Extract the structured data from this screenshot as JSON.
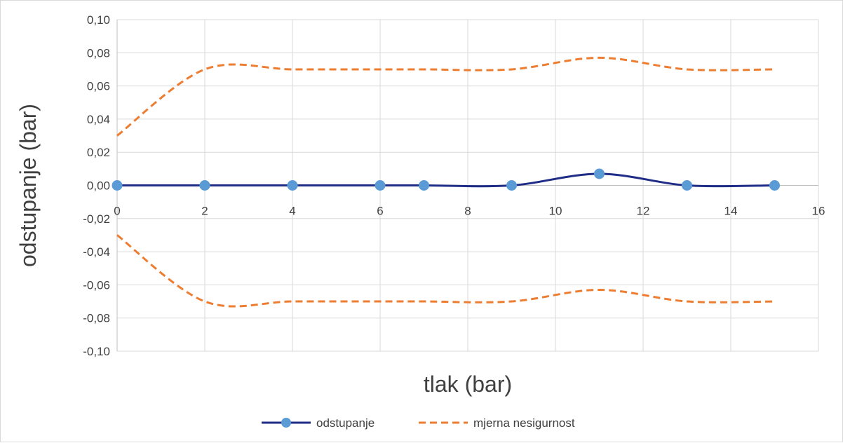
{
  "chart_data": {
    "type": "line",
    "title": "",
    "xlabel": "tlak (bar)",
    "ylabel": "odstupanje (bar)",
    "xlim": [
      0,
      16
    ],
    "ylim": [
      -0.1,
      0.1
    ],
    "x_ticks": [
      "0",
      "2",
      "4",
      "6",
      "8",
      "10",
      "12",
      "14",
      "16"
    ],
    "y_ticks": [
      "0,10",
      "0,08",
      "0,06",
      "0,04",
      "0,02",
      "0,00",
      "-0,02",
      "-0,04",
      "-0,06",
      "-0,08",
      "-0,10"
    ],
    "grid": true,
    "legend_position": "bottom",
    "series": [
      {
        "name": "odstupanje",
        "color": "#1f2d86",
        "marker_color": "#5b9bd5",
        "style": "solid-smooth-markers",
        "x": [
          0,
          2,
          4,
          6,
          7,
          9,
          11,
          13,
          15
        ],
        "y": [
          0.0,
          0.0,
          0.0,
          0.0,
          0.0,
          0.0,
          0.007,
          0.0,
          0.0
        ]
      },
      {
        "name": "mjerna nesigurnost",
        "color": "#ed7d31",
        "style": "dashed-smooth",
        "x": [
          0,
          2,
          4,
          6,
          7,
          9,
          11,
          13,
          15
        ],
        "y": [
          0.03,
          0.07,
          0.07,
          0.07,
          0.07,
          0.07,
          0.077,
          0.07,
          0.07
        ]
      },
      {
        "name": "mjerna nesigurnost",
        "color": "#ed7d31",
        "style": "dashed-smooth",
        "x": [
          0,
          2,
          4,
          6,
          7,
          9,
          11,
          13,
          15
        ],
        "y": [
          -0.03,
          -0.07,
          -0.07,
          -0.07,
          -0.07,
          -0.07,
          -0.063,
          -0.07,
          -0.07
        ]
      }
    ]
  }
}
